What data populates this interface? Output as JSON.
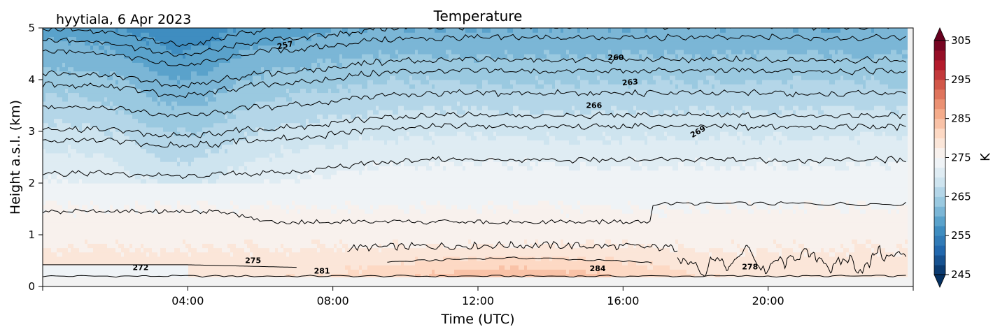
{
  "chart_data": {
    "type": "heatmap",
    "title": "Temperature",
    "site_label": "hyytiala, 6 Apr 2023",
    "xlabel": "Time (UTC)",
    "ylabel": "Height a.s.l. (km)",
    "xlim_hours": [
      0,
      24
    ],
    "ylim": [
      0,
      5
    ],
    "x_ticks": [
      {
        "hour": 4,
        "label": "04:00"
      },
      {
        "hour": 8,
        "label": "08:00"
      },
      {
        "hour": 12,
        "label": "12:00"
      },
      {
        "hour": 16,
        "label": "16:00"
      },
      {
        "hour": 20,
        "label": "20:00"
      }
    ],
    "y_ticks": [
      0,
      1,
      2,
      3,
      4,
      5
    ],
    "colorbar": {
      "label": "K",
      "range": [
        245,
        305
      ],
      "ticks": [
        245,
        255,
        265,
        275,
        285,
        295,
        305
      ],
      "extend": "both",
      "colormap": "RdBu_r"
    },
    "contour_labels": [
      {
        "text": "257",
        "hour": 6.7,
        "height": 4.62,
        "angle": -12
      },
      {
        "text": "260",
        "hour": 15.8,
        "height": 4.38,
        "angle": 0
      },
      {
        "text": "263",
        "hour": 16.2,
        "height": 3.9,
        "angle": -5
      },
      {
        "text": "266",
        "hour": 15.2,
        "height": 3.45,
        "angle": 0
      },
      {
        "text": "269",
        "hour": 18.1,
        "height": 2.95,
        "angle": -30
      },
      {
        "text": "272",
        "hour": 2.7,
        "height": 0.32,
        "angle": 0
      },
      {
        "text": "275",
        "hour": 5.8,
        "height": 0.45,
        "angle": 0
      },
      {
        "text": "281",
        "hour": 7.7,
        "height": 0.25,
        "angle": 0
      },
      {
        "text": "284",
        "hour": 15.3,
        "height": 0.3,
        "angle": 0
      },
      {
        "text": "278",
        "hour": 19.5,
        "height": 0.33,
        "angle": 0
      }
    ]
  }
}
